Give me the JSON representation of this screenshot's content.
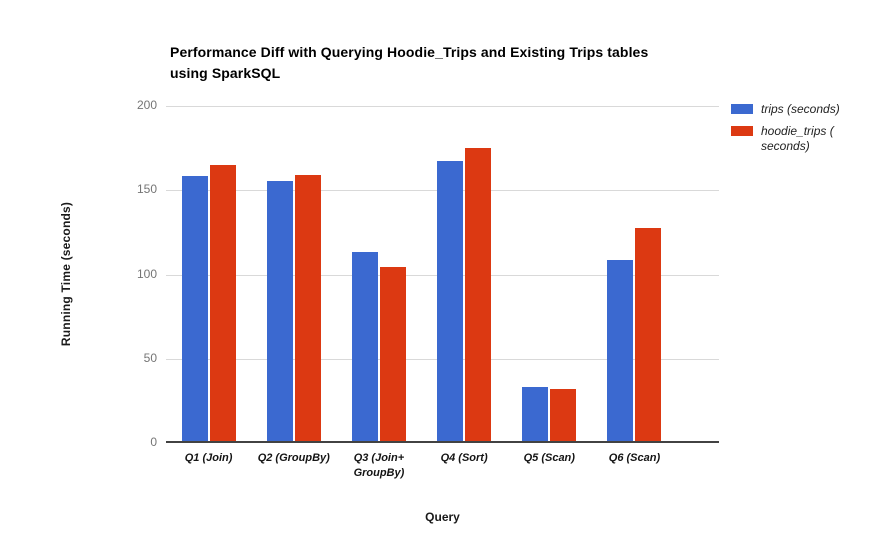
{
  "chart_data": {
    "type": "bar",
    "title": "Performance Diff with Querying Hoodie_Trips and Existing Trips tables\nusing SparkSQL",
    "xlabel": "Query",
    "ylabel": "Running Time (seconds)",
    "ylim": [
      0,
      200
    ],
    "yticks": [
      0,
      50,
      100,
      150,
      200
    ],
    "grid": true,
    "legend_position": "right",
    "categories": [
      "Q1 (Join)",
      "Q2 (GroupBy)",
      "Q3 (Join+\nGroupBy)",
      "Q4 (Sort)",
      "Q5 (Scan)",
      "Q6 (Scan)"
    ],
    "series": [
      {
        "name": "trips (seconds)",
        "color": "#3b69d0",
        "values": [
          158,
          155,
          113,
          167,
          32,
          108
        ]
      },
      {
        "name": "hoodie_trips (\nseconds)",
        "color": "#dc3912",
        "values": [
          165,
          159,
          104,
          175,
          31,
          127
        ]
      }
    ],
    "axis_colors": {
      "gridline": "#d9d9d9",
      "baseline": "#424242",
      "tick_label": "#757575"
    }
  }
}
